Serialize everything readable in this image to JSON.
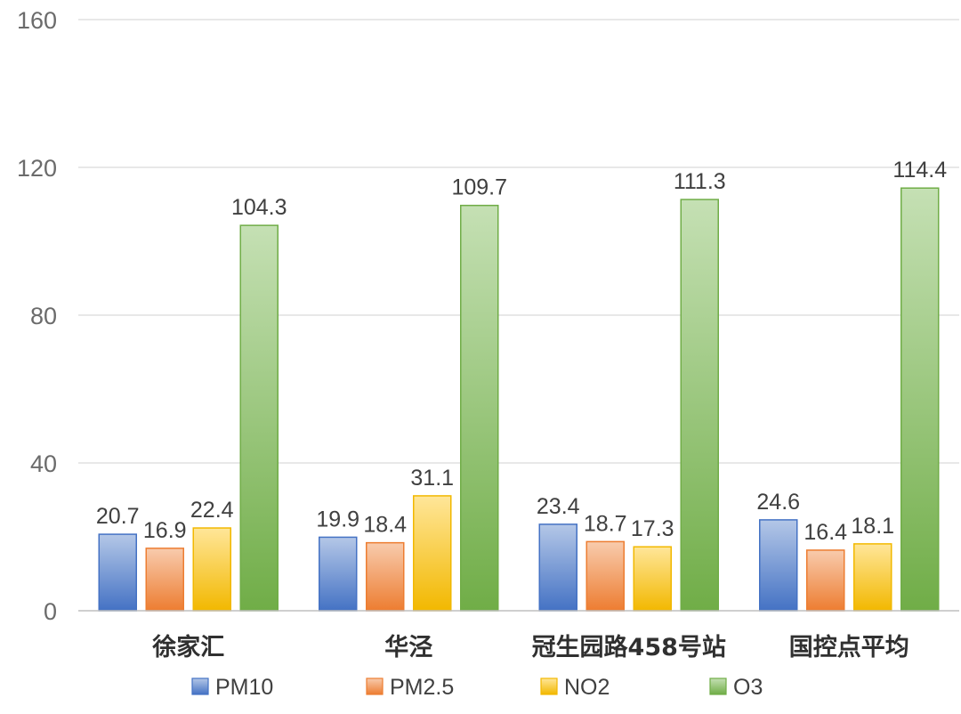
{
  "chart_data": {
    "type": "bar",
    "title": "",
    "xlabel": "",
    "ylabel": "",
    "ylim": [
      0,
      160
    ],
    "yticks": [
      0,
      40,
      80,
      120,
      160
    ],
    "grid": true,
    "legend_position": "bottom",
    "categories": [
      "徐家汇",
      "华泾",
      "冠生园路458号站",
      "国控点平均"
    ],
    "series": [
      {
        "name": "PM10",
        "values": [
          20.7,
          19.9,
          23.4,
          24.6
        ],
        "labels": [
          "20.7",
          "19.9",
          "23.4",
          "24.6"
        ],
        "color": "#4472c4",
        "color_light": "#b4c7e7",
        "border": "#4472c4"
      },
      {
        "name": "PM2.5",
        "values": [
          16.9,
          18.4,
          18.7,
          16.4
        ],
        "labels": [
          "16.9",
          "18.4",
          "18.7",
          "16.4"
        ],
        "color": "#ed7d31",
        "color_light": "#f8cbad",
        "border": "#ed7d31"
      },
      {
        "name": "NO2",
        "values": [
          22.4,
          31.1,
          17.3,
          18.1
        ],
        "labels": [
          "22.4",
          "31.1",
          "17.3",
          "18.1"
        ],
        "color": "#f2b800",
        "color_light": "#ffe699",
        "border": "#f2b800"
      },
      {
        "name": "O3",
        "values": [
          104.3,
          109.7,
          111.3,
          114.4
        ],
        "labels": [
          "104.3",
          "109.7",
          "111.3",
          "114.4"
        ],
        "color": "#70ad47",
        "color_light": "#c5e0b4",
        "border": "#70ad47"
      }
    ]
  }
}
